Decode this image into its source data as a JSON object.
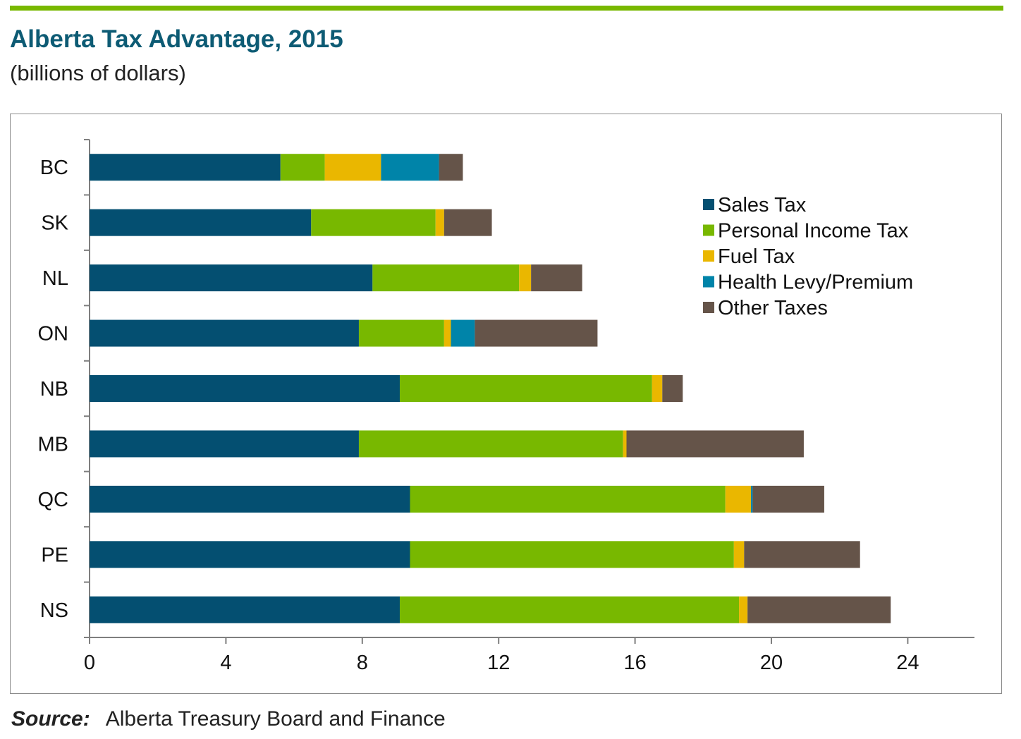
{
  "header": {
    "title": "Alberta Tax Advantage, 2015",
    "subtitle": "(billions of dollars)"
  },
  "footer": {
    "source_label": "Source:",
    "source_text": "Alberta Treasury Board and Finance"
  },
  "colors": {
    "accent_rule": "#78b800",
    "title": "#0d5b74"
  },
  "chart_data": {
    "type": "bar",
    "orientation": "horizontal",
    "stacked": true,
    "title": "Alberta Tax Advantage, 2015",
    "subtitle": "(billions of dollars)",
    "categories": [
      "BC",
      "SK",
      "NL",
      "ON",
      "NB",
      "MB",
      "QC",
      "PE",
      "NS"
    ],
    "xlim": [
      0,
      26
    ],
    "xticks": [
      0,
      4,
      8,
      12,
      16,
      20,
      24
    ],
    "grid": false,
    "legend_position": "top-right",
    "series": [
      {
        "name": "Sales Tax",
        "color": "#044f71",
        "values": [
          5.6,
          6.5,
          8.3,
          7.9,
          9.1,
          7.9,
          9.4,
          9.4,
          9.1
        ]
      },
      {
        "name": "Personal Income Tax",
        "color": "#78b800",
        "values": [
          1.3,
          3.65,
          4.3,
          2.5,
          7.4,
          7.75,
          9.25,
          9.5,
          9.95
        ]
      },
      {
        "name": "Fuel Tax",
        "color": "#eab700",
        "values": [
          1.65,
          0.25,
          0.35,
          0.2,
          0.3,
          0.1,
          0.75,
          0.3,
          0.25
        ]
      },
      {
        "name": "Health Levy/Premium",
        "color": "#0084a9",
        "values": [
          1.7,
          0,
          0,
          0.7,
          0,
          0,
          0.05,
          0,
          0
        ]
      },
      {
        "name": "Other Taxes",
        "color": "#655449",
        "values": [
          0.7,
          1.4,
          1.5,
          3.6,
          0.6,
          5.2,
          2.1,
          3.4,
          4.2
        ]
      }
    ]
  }
}
